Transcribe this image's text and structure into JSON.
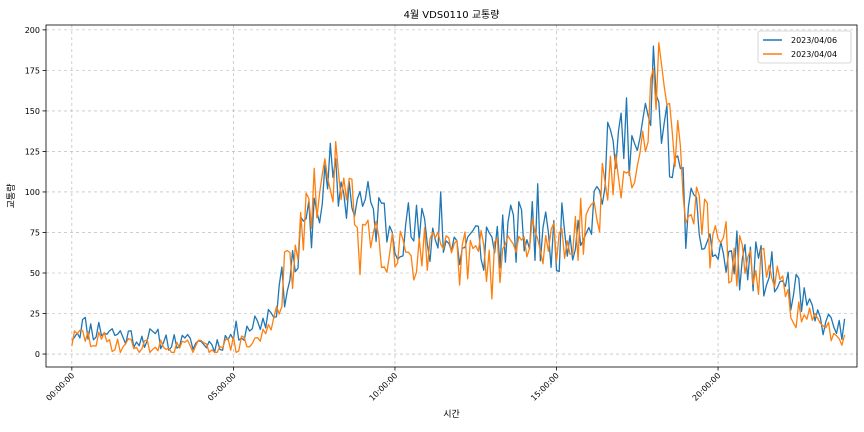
{
  "chart_data": {
    "type": "line",
    "title": "4월 VDS0110 교통량",
    "xlabel": "시간",
    "ylabel": "교통량",
    "xlim": [
      -0.8,
      24.3
    ],
    "ylim": [
      -8,
      203
    ],
    "x_ticks": [
      {
        "value": 0,
        "label": "00:00:00"
      },
      {
        "value": 5,
        "label": "05:00:00"
      },
      {
        "value": 10,
        "label": "10:00:00"
      },
      {
        "value": 15,
        "label": "15:00:00"
      },
      {
        "value": 20,
        "label": "20:00:00"
      }
    ],
    "y_ticks": [
      0,
      25,
      50,
      75,
      100,
      125,
      150,
      175,
      200
    ],
    "grid": true,
    "legend_position": "top-right",
    "series": [
      {
        "name": "2023/04/06",
        "color": "#1f77b4",
        "anchors": [
          [
            0,
            12
          ],
          [
            0.3,
            18
          ],
          [
            0.6,
            15
          ],
          [
            1,
            15
          ],
          [
            1.5,
            12
          ],
          [
            2,
            10
          ],
          [
            2.5,
            10
          ],
          [
            3,
            8
          ],
          [
            3.5,
            7
          ],
          [
            4,
            7
          ],
          [
            4.5,
            6
          ],
          [
            5,
            12
          ],
          [
            5.5,
            18
          ],
          [
            6,
            22
          ],
          [
            6.5,
            40
          ],
          [
            7,
            60
          ],
          [
            7.5,
            90
          ],
          [
            8,
            105
          ],
          [
            8.5,
            100
          ],
          [
            9,
            92
          ],
          [
            9.5,
            85
          ],
          [
            10,
            80
          ],
          [
            10.5,
            75
          ],
          [
            11,
            72
          ],
          [
            11.5,
            70
          ],
          [
            12,
            65
          ],
          [
            12.5,
            68
          ],
          [
            13,
            70
          ],
          [
            13.5,
            72
          ],
          [
            14,
            75
          ],
          [
            14.5,
            72
          ],
          [
            15,
            70
          ],
          [
            15.5,
            78
          ],
          [
            16,
            85
          ],
          [
            16.5,
            110
          ],
          [
            17,
            135
          ],
          [
            17.5,
            125
          ],
          [
            18,
            150
          ],
          [
            18.3,
            145
          ],
          [
            18.7,
            110
          ],
          [
            19,
            85
          ],
          [
            19.5,
            75
          ],
          [
            20,
            60
          ],
          [
            20.5,
            58
          ],
          [
            21,
            55
          ],
          [
            21.5,
            50
          ],
          [
            22,
            42
          ],
          [
            22.5,
            35
          ],
          [
            23,
            22
          ],
          [
            23.5,
            18
          ],
          [
            23.83,
            15
          ]
        ],
        "noise": 13,
        "spikes": [
          [
            7.2,
            82
          ],
          [
            8.0,
            130
          ],
          [
            11.4,
            100
          ],
          [
            14.4,
            105
          ],
          [
            16.6,
            143
          ],
          [
            17.2,
            158
          ],
          [
            18.0,
            190
          ],
          [
            18.9,
            115
          ]
        ],
        "seed": 11
      },
      {
        "name": "2023/04/04",
        "color": "#ff7f0e",
        "anchors": [
          [
            0,
            8
          ],
          [
            0.3,
            12
          ],
          [
            0.6,
            8
          ],
          [
            1,
            8
          ],
          [
            1.5,
            6
          ],
          [
            2,
            5
          ],
          [
            2.5,
            4
          ],
          [
            3,
            4
          ],
          [
            3.5,
            4
          ],
          [
            4,
            4
          ],
          [
            4.5,
            4
          ],
          [
            5,
            6
          ],
          [
            5.5,
            6
          ],
          [
            6,
            12
          ],
          [
            6.5,
            40
          ],
          [
            7,
            65
          ],
          [
            7.5,
            95
          ],
          [
            8,
            110
          ],
          [
            8.5,
            95
          ],
          [
            9,
            80
          ],
          [
            9.5,
            72
          ],
          [
            10,
            70
          ],
          [
            10.5,
            65
          ],
          [
            11,
            60
          ],
          [
            11.5,
            58
          ],
          [
            12,
            58
          ],
          [
            12.5,
            60
          ],
          [
            13,
            62
          ],
          [
            13.5,
            65
          ],
          [
            14,
            65
          ],
          [
            14.5,
            68
          ],
          [
            15,
            70
          ],
          [
            15.5,
            75
          ],
          [
            16,
            85
          ],
          [
            16.5,
            100
          ],
          [
            17,
            105
          ],
          [
            17.5,
            115
          ],
          [
            18,
            165
          ],
          [
            18.3,
            160
          ],
          [
            18.7,
            130
          ],
          [
            19,
            100
          ],
          [
            19.5,
            80
          ],
          [
            20,
            65
          ],
          [
            20.5,
            60
          ],
          [
            21,
            55
          ],
          [
            21.5,
            48
          ],
          [
            22,
            38
          ],
          [
            22.5,
            25
          ],
          [
            23,
            18
          ],
          [
            23.5,
            14
          ],
          [
            23.83,
            12
          ]
        ],
        "noise": 13,
        "spikes": [
          [
            6.6,
            63
          ],
          [
            8.2,
            131
          ],
          [
            8.9,
            49
          ],
          [
            13.0,
            34
          ],
          [
            16.7,
            122
          ],
          [
            18.0,
            176
          ],
          [
            18.2,
            192
          ],
          [
            19.3,
            103
          ]
        ],
        "seed": 29
      }
    ]
  }
}
